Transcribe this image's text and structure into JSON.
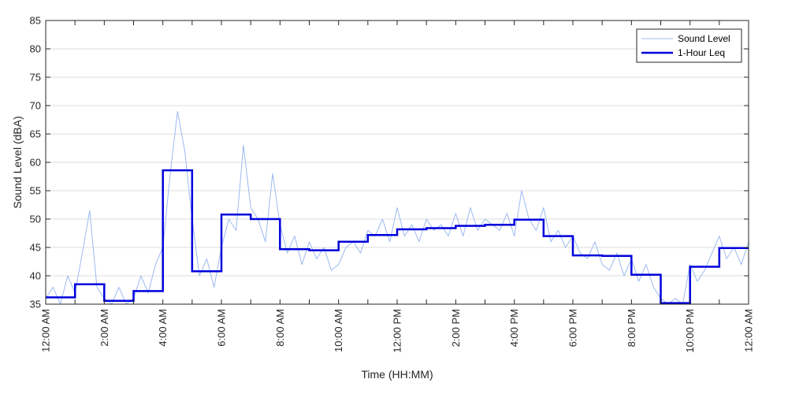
{
  "chart_data": {
    "type": "line",
    "xlabel": "Time (HH:MM)",
    "ylabel": "Sound Level (dBA)",
    "xlim": [
      0,
      24
    ],
    "ylim": [
      35,
      85
    ],
    "grid": "horizontal",
    "legend_position": "top-right",
    "x_ticks": [
      {
        "hour": 0,
        "label": "12:00 AM"
      },
      {
        "hour": 2,
        "label": "2:00 AM"
      },
      {
        "hour": 4,
        "label": "4:00 AM"
      },
      {
        "hour": 6,
        "label": "6:00 AM"
      },
      {
        "hour": 8,
        "label": "8:00 AM"
      },
      {
        "hour": 10,
        "label": "10:00 AM"
      },
      {
        "hour": 12,
        "label": "12:00 PM"
      },
      {
        "hour": 14,
        "label": "2:00 PM"
      },
      {
        "hour": 16,
        "label": "4:00 PM"
      },
      {
        "hour": 18,
        "label": "6:00 PM"
      },
      {
        "hour": 20,
        "label": "8:00 PM"
      },
      {
        "hour": 22,
        "label": "10:00 PM"
      },
      {
        "hour": 24,
        "label": "12:00 AM"
      }
    ],
    "y_ticks": [
      35,
      40,
      45,
      50,
      55,
      60,
      65,
      70,
      75,
      80,
      85
    ],
    "series": [
      {
        "name": "Sound Level",
        "style": "thin-line",
        "color": "#9db9f0",
        "x": [
          0.0,
          0.25,
          0.5,
          0.75,
          1.0,
          1.25,
          1.5,
          1.75,
          2.0,
          2.25,
          2.5,
          2.75,
          3.0,
          3.25,
          3.5,
          3.75,
          4.0,
          4.25,
          4.5,
          4.75,
          5.0,
          5.25,
          5.5,
          5.75,
          6.0,
          6.25,
          6.5,
          6.75,
          7.0,
          7.25,
          7.5,
          7.75,
          8.0,
          8.25,
          8.5,
          8.75,
          9.0,
          9.25,
          9.5,
          9.75,
          10.0,
          10.25,
          10.5,
          10.75,
          11.0,
          11.25,
          11.5,
          11.75,
          12.0,
          12.25,
          12.5,
          12.75,
          13.0,
          13.25,
          13.5,
          13.75,
          14.0,
          14.25,
          14.5,
          14.75,
          15.0,
          15.25,
          15.5,
          15.75,
          16.0,
          16.25,
          16.5,
          16.75,
          17.0,
          17.25,
          17.5,
          17.75,
          18.0,
          18.25,
          18.5,
          18.75,
          19.0,
          19.25,
          19.5,
          19.75,
          20.0,
          20.25,
          20.5,
          20.75,
          21.0,
          21.25,
          21.5,
          21.75,
          22.0,
          22.25,
          22.5,
          22.75,
          23.0,
          23.25,
          23.5,
          23.75,
          24.0
        ],
        "values": [
          36,
          38,
          35,
          40,
          37,
          44,
          51.5,
          38,
          36,
          35,
          38,
          35,
          36,
          40,
          37,
          42,
          45,
          58,
          69,
          62,
          50,
          40,
          43,
          38,
          45,
          50,
          48,
          63,
          52,
          50,
          46,
          58,
          49,
          44,
          47,
          42,
          46,
          43,
          45,
          41,
          42,
          45,
          46,
          44,
          48,
          47,
          50,
          46,
          52,
          47,
          49,
          46,
          50,
          48,
          49,
          47,
          51,
          47,
          52,
          48,
          50,
          49,
          48,
          51,
          47,
          55,
          50,
          48,
          52,
          46,
          48,
          45,
          47,
          44,
          43,
          46,
          42,
          41,
          44,
          40,
          43,
          39,
          42,
          38,
          36,
          35,
          36,
          35,
          42,
          39,
          41,
          44,
          47,
          43,
          45,
          42,
          46
        ]
      },
      {
        "name": "1-Hour Leq",
        "style": "step",
        "color": "#0000dd",
        "hours": [
          0,
          1,
          2,
          3,
          4,
          5,
          6,
          7,
          8,
          9,
          10,
          11,
          12,
          13,
          14,
          15,
          16,
          17,
          18,
          19,
          20,
          21,
          22,
          23,
          24
        ],
        "values": [
          36.2,
          38.5,
          35.6,
          37.3,
          58.6,
          40.8,
          50.8,
          50.0,
          44.7,
          44.5,
          46.0,
          47.2,
          48.2,
          48.4,
          48.8,
          49.0,
          49.9,
          47.0,
          43.6,
          43.5,
          40.2,
          35.2,
          41.6,
          44.9,
          44.9
        ]
      }
    ]
  }
}
